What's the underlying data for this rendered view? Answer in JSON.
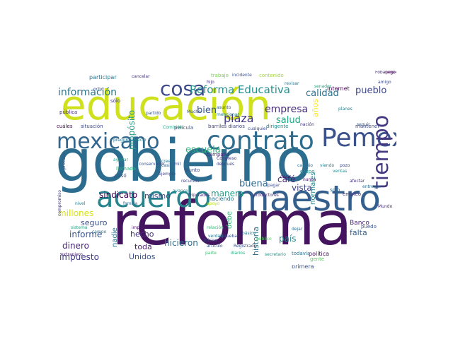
{
  "words": [
    {
      "t": "gobierno",
      "c": "#2c6c8e"
    },
    {
      "t": "reforma",
      "c": "#44155e"
    },
    {
      "t": "educación",
      "c": "#cfe11c"
    },
    {
      "t": "maestro",
      "c": "#345f8d"
    },
    {
      "t": "acuerdo",
      "c": "#25858e"
    },
    {
      "t": "contrato",
      "c": "#2e6d8e"
    },
    {
      "t": "Pemex",
      "c": "#3b518b"
    },
    {
      "t": "mexicano",
      "c": "#31668e"
    },
    {
      "t": "cosa",
      "c": "#3e4a89"
    },
    {
      "t": "tiempo",
      "c": "#453781"
    },
    {
      "t": "Reforma Educativa",
      "c": "#21918c"
    },
    {
      "t": "información",
      "c": "#2a788e"
    },
    {
      "t": "plaza",
      "c": "#453882"
    },
    {
      "t": "empresa",
      "c": "#472d7b"
    },
    {
      "t": "pueblo",
      "c": "#3f4788"
    },
    {
      "t": "calidad",
      "c": "#2d708e"
    },
    {
      "t": "salud",
      "c": "#22a884"
    },
    {
      "t": "bien",
      "c": "#38588c"
    },
    {
      "t": "escuela",
      "c": "#2db27d"
    },
    {
      "t": "propósito",
      "c": "#1f9e89"
    },
    {
      "t": "derecho",
      "c": "#3d4d8a"
    },
    {
      "t": "buena",
      "c": "#31688e"
    },
    {
      "t": "café",
      "c": "#482475"
    },
    {
      "t": "vista",
      "c": "#414487"
    },
    {
      "t": "sindicato",
      "c": "#440154"
    },
    {
      "t": "manera",
      "c": "#1fa188"
    },
    {
      "t": "mismo",
      "c": "#3f4889"
    },
    {
      "t": "país",
      "c": "#23888e"
    },
    {
      "t": "falta",
      "c": "#34608d"
    },
    {
      "t": "millones",
      "c": "#d8e219"
    },
    {
      "t": "seguro",
      "c": "#3b528b"
    },
    {
      "t": "informe",
      "c": "#39568c"
    },
    {
      "t": "dinero",
      "c": "#482878"
    },
    {
      "t": "hecho",
      "c": "#46327e"
    },
    {
      "t": "impuesto",
      "c": "#433e85"
    },
    {
      "t": "toda",
      "c": "#481f70"
    },
    {
      "t": "hicieron",
      "c": "#2e6f8e"
    },
    {
      "t": "Unidos",
      "c": "#3a538b"
    },
    {
      "t": "historia",
      "c": "#2d718e"
    },
    {
      "t": "nadie",
      "c": "#2a778e"
    },
    {
      "t": "debe",
      "c": "#38b977"
    },
    {
      "t": "normales",
      "c": "#24868e"
    },
    {
      "t": "Banco",
      "c": "#482677"
    },
    {
      "t": "años",
      "c": "#fde725"
    },
    {
      "t": "Internet",
      "c": "#440154"
    },
    {
      "t": "política",
      "c": "#46085c"
    },
    {
      "t": "primera",
      "c": "#3b528b"
    },
    {
      "t": "participar",
      "c": "#2b748e"
    },
    {
      "t": "cuáles",
      "c": "#440154"
    },
    {
      "t": "situación",
      "c": "#3e4c8a"
    },
    {
      "t": "barriles diarios",
      "c": "#404588"
    },
    {
      "t": "dirigente",
      "c": "#23898e"
    },
    {
      "t": "mantener",
      "c": "#3e4a89"
    },
    {
      "t": "campaña",
      "c": "#472a7a"
    },
    {
      "t": "película",
      "c": "#3c4f8a"
    },
    {
      "t": "trabajo",
      "c": "#75d054"
    },
    {
      "t": "contenido",
      "c": "#a0da39"
    },
    {
      "t": "solo",
      "c": "#31688e"
    },
    {
      "t": "empleo",
      "c": "#443a83"
    },
    {
      "t": "haciendo",
      "c": "#2a778e"
    },
    {
      "t": "gente",
      "c": "#5ec962"
    },
    {
      "t": "todavía",
      "c": "#2c718e"
    },
    {
      "t": "secretario",
      "c": "#1f968b"
    },
    {
      "t": "puedo",
      "c": "#3a548c"
    },
    {
      "t": "asunto",
      "c": "#306a8e"
    },
    {
      "t": "planes",
      "c": "#26818e"
    },
    {
      "t": "Mucho",
      "c": "#3b528b"
    },
    {
      "t": "proceso",
      "c": "#375a8c"
    },
    {
      "t": "compromiso",
      "c": "#433d84"
    },
    {
      "t": "punto",
      "c": "#3e4989"
    },
    {
      "t": "familia",
      "c": "#31678e"
    },
    {
      "t": "sistema",
      "c": "#21a685"
    },
    {
      "t": "importante",
      "c": "#481769"
    },
    {
      "t": "extranjero",
      "c": "#482071"
    },
    {
      "t": "Congreso",
      "c": "#424186"
    },
    {
      "t": "cambio",
      "c": "#2c728e"
    },
    {
      "t": "viendo",
      "c": "#26818e"
    },
    {
      "t": "recursos",
      "c": "#3f4788"
    },
    {
      "t": "avance",
      "c": "#25838e"
    },
    {
      "t": "Diputados",
      "c": "#472f7d"
    },
    {
      "t": "productores",
      "c": "#46337f"
    },
    {
      "t": "relación",
      "c": "#34b679"
    },
    {
      "t": "aprueba",
      "c": "#3b528b"
    },
    {
      "t": "básico",
      "c": "#277f8e"
    },
    {
      "t": "ocho",
      "c": "#3d4e8a"
    },
    {
      "t": "cancelar",
      "c": "#46337e"
    },
    {
      "t": "revisar",
      "c": "#2a788e"
    },
    {
      "t": "negocio",
      "c": "#440154"
    },
    {
      "t": "amigo",
      "c": "#3e4a89"
    },
    {
      "t": "incidente",
      "c": "#3c4f8a"
    },
    {
      "t": "sólo",
      "c": "#443b84"
    },
    {
      "t": "pública",
      "c": "#472d7b"
    },
    {
      "t": "Comisión",
      "c": "#22a785"
    },
    {
      "t": "precio",
      "c": "#228c8d"
    },
    {
      "t": "preguntas",
      "c": "#2c728e"
    },
    {
      "t": "ayudar",
      "c": "#1f9f88"
    },
    {
      "t": "llamada",
      "c": "#29af7f"
    },
    {
      "t": "pasó",
      "c": "#3a538b"
    },
    {
      "t": "nivel",
      "c": "#287d8e"
    },
    {
      "t": "campo",
      "c": "#2b758e"
    },
    {
      "t": "casi",
      "c": "#306a8e"
    },
    {
      "t": "ejemplo",
      "c": "#404588"
    },
    {
      "t": "cree",
      "c": "#2c718e"
    },
    {
      "t": "conservador",
      "c": "#3b518b"
    },
    {
      "t": "después",
      "c": "#3f4788"
    },
    {
      "t": "apoyo",
      "c": "#b5de2b"
    },
    {
      "t": "pagar",
      "c": "#3d4e8a"
    },
    {
      "t": "decir",
      "c": "#481f70"
    },
    {
      "t": "grupo",
      "c": "#1f948c"
    },
    {
      "t": "nunca",
      "c": "#481467"
    },
    {
      "t": "cualquier",
      "c": "#3e4a89"
    },
    {
      "t": "seguir",
      "c": "#375b8d"
    },
    {
      "t": "nación",
      "c": "#46307e"
    },
    {
      "t": "partido",
      "c": "#3a548c"
    },
    {
      "t": "Mundo",
      "c": "#482979"
    },
    {
      "t": "dejar",
      "c": "#2e6e8e"
    },
    {
      "t": "juicios",
      "c": "#3e4a89"
    },
    {
      "t": "verdad",
      "c": "#2a768e"
    },
    {
      "t": "parte",
      "c": "#40bd72"
    },
    {
      "t": "artículo",
      "c": "#3b528b"
    },
    {
      "t": "Registrado",
      "c": "#3b518b"
    },
    {
      "t": "público",
      "c": "#5ac864"
    },
    {
      "t": "mencionar",
      "c": "#2a788e"
    },
    {
      "t": "diarios",
      "c": "#25ac82"
    },
    {
      "t": "afectar",
      "c": "#46337e"
    },
    {
      "t": "entregar",
      "c": "#2f6c8e"
    },
    {
      "t": "pozo",
      "c": "#3e4a89"
    },
    {
      "t": "Fobaproa",
      "c": "#482878"
    },
    {
      "t": "senador",
      "c": "#21a685"
    },
    {
      "t": "ventas",
      "c": "#238a8d"
    },
    {
      "t": "mil",
      "c": "#3b528b"
    },
    {
      "t": "hijo",
      "c": "#46327e"
    }
  ]
}
